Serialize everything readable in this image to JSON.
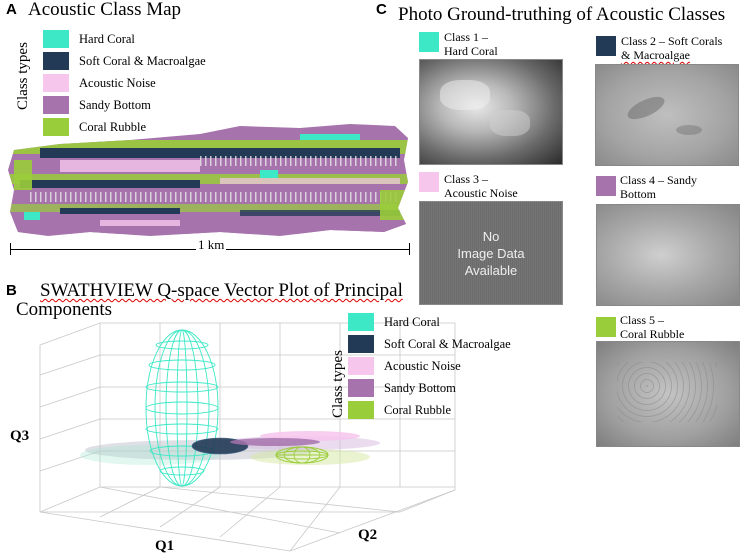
{
  "panel_a": {
    "letter": "A",
    "title": "Acoustic Class Map",
    "legend_title": "Class types",
    "scale_label": "1 km"
  },
  "panel_b": {
    "letter": "B",
    "title_line1": "SWATHVIEW Q-space Vector Plot of Principal",
    "title_line2": "Components",
    "legend_title": "Class types",
    "axis_q1": "Q1",
    "axis_q2": "Q2",
    "axis_q3": "Q3"
  },
  "panel_c": {
    "letter": "C",
    "title": "Photo Ground-truthing of Acoustic Classes",
    "captions": {
      "c1_l1": "Class 1 –",
      "c1_l2": "Hard Coral",
      "c2_l1": "Class 2 – Soft Corals",
      "c2_l2": "& Macroalgae",
      "c3_l1": "Class 3 –",
      "c3_l2": "Acoustic Noise",
      "c4_l1": "Class 4 – Sandy",
      "c4_l2": "Bottom",
      "c5_l1": "Class 5 –",
      "c5_l2": "Coral Rubble"
    },
    "no_image": {
      "line1": "No",
      "line2": "Image Data",
      "line3": "Available"
    }
  },
  "classes": [
    {
      "label": "Hard Coral",
      "color": "#3de8c6"
    },
    {
      "label": "Soft Coral & Macroalgae",
      "color": "#223a55"
    },
    {
      "label": "Acoustic Noise",
      "color": "#f6c6ec"
    },
    {
      "label": "Sandy Bottom",
      "color": "#a673ad"
    },
    {
      "label": "Coral Rubble",
      "color": "#9acd3a"
    }
  ]
}
